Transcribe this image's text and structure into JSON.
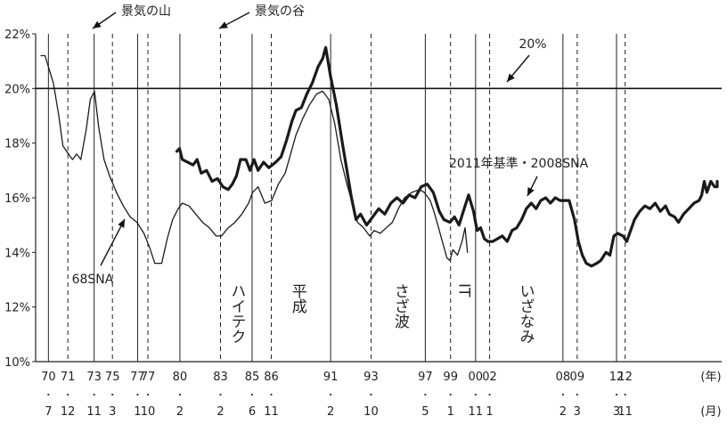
{
  "chart_data": {
    "type": "line",
    "ylim": [
      10,
      22
    ],
    "y_ticks": [
      "10%",
      "12%",
      "14%",
      "16%",
      "18%",
      "20%",
      "22%"
    ],
    "y_tick_values": [
      10,
      12,
      14,
      16,
      18,
      20,
      22
    ],
    "x_unit_year": "(年)",
    "x_unit_month": "(月)",
    "reference_line": {
      "value": 20,
      "label": "20%"
    },
    "legend_peak": "景気の山",
    "legend_trough": "景気の谷",
    "turning_points": [
      {
        "year": "70",
        "month": "7",
        "kind": "peak"
      },
      {
        "year": "71",
        "month": "12",
        "kind": "trough"
      },
      {
        "year": "73",
        "month": "11",
        "kind": "peak"
      },
      {
        "year": "75",
        "month": "3",
        "kind": "trough"
      },
      {
        "year": "77",
        "month": "1",
        "kind": "peak"
      },
      {
        "year": "77",
        "month": "10",
        "kind": "trough"
      },
      {
        "year": "80",
        "month": "2",
        "kind": "peak"
      },
      {
        "year": "83",
        "month": "2",
        "kind": "trough"
      },
      {
        "year": "85",
        "month": "6",
        "kind": "peak"
      },
      {
        "year": "86",
        "month": "11",
        "kind": "trough"
      },
      {
        "year": "91",
        "month": "2",
        "kind": "peak"
      },
      {
        "year": "93",
        "month": "10",
        "kind": "trough"
      },
      {
        "year": "97",
        "month": "5",
        "kind": "peak"
      },
      {
        "year": "99",
        "month": "1",
        "kind": "trough"
      },
      {
        "year": "00",
        "month": "11",
        "kind": "peak"
      },
      {
        "year": "02",
        "month": "1",
        "kind": "trough"
      },
      {
        "year": "08",
        "month": "2",
        "kind": "peak"
      },
      {
        "year": "09",
        "month": "3",
        "kind": "trough"
      },
      {
        "year": "12",
        "month": "3",
        "kind": "peak"
      },
      {
        "year": "12",
        "month": "11",
        "kind": "trough"
      }
    ],
    "eras": [
      {
        "label": "ハイテク",
        "x": 1984.3
      },
      {
        "label": "平成",
        "x": 1988.8
      },
      {
        "label": "さざ波",
        "x": 1995.7
      },
      {
        "label": "IT",
        "x": 1999.9
      },
      {
        "label": "いざなみ",
        "x": 2005.0
      }
    ],
    "series": [
      {
        "name": "68SNA",
        "style": "thin",
        "points": [
          [
            1970.0,
            21.2
          ],
          [
            1970.3,
            21.2
          ],
          [
            1970.6,
            20.7
          ],
          [
            1970.9,
            20.2
          ],
          [
            1971.3,
            19.0
          ],
          [
            1971.6,
            17.9
          ],
          [
            1972.0,
            17.6
          ],
          [
            1972.3,
            17.4
          ],
          [
            1972.6,
            17.6
          ],
          [
            1972.9,
            17.4
          ],
          [
            1973.3,
            18.5
          ],
          [
            1973.6,
            19.6
          ],
          [
            1973.9,
            19.9
          ],
          [
            1974.2,
            18.6
          ],
          [
            1974.6,
            17.4
          ],
          [
            1975.0,
            16.8
          ],
          [
            1975.5,
            16.2
          ],
          [
            1976.0,
            15.7
          ],
          [
            1976.5,
            15.3
          ],
          [
            1977.0,
            15.1
          ],
          [
            1977.5,
            14.7
          ],
          [
            1977.9,
            14.2
          ],
          [
            1978.3,
            13.6
          ],
          [
            1978.8,
            13.6
          ],
          [
            1979.2,
            14.5
          ],
          [
            1979.6,
            15.2
          ],
          [
            1980.0,
            15.6
          ],
          [
            1980.3,
            15.8
          ],
          [
            1980.8,
            15.7
          ],
          [
            1981.3,
            15.4
          ],
          [
            1981.8,
            15.1
          ],
          [
            1982.3,
            14.9
          ],
          [
            1982.8,
            14.6
          ],
          [
            1983.2,
            14.6
          ],
          [
            1983.7,
            14.9
          ],
          [
            1984.2,
            15.1
          ],
          [
            1984.7,
            15.4
          ],
          [
            1985.2,
            15.8
          ],
          [
            1985.5,
            16.2
          ],
          [
            1985.9,
            16.4
          ],
          [
            1986.4,
            15.8
          ],
          [
            1986.9,
            15.9
          ],
          [
            1987.4,
            16.5
          ],
          [
            1987.9,
            16.9
          ],
          [
            1988.3,
            17.6
          ],
          [
            1988.7,
            18.3
          ],
          [
            1989.2,
            18.9
          ],
          [
            1989.7,
            19.4
          ],
          [
            1990.2,
            19.8
          ],
          [
            1990.6,
            19.9
          ],
          [
            1991.0,
            19.6
          ],
          [
            1991.4,
            18.7
          ],
          [
            1991.8,
            17.4
          ],
          [
            1992.2,
            16.5
          ],
          [
            1992.6,
            15.7
          ],
          [
            1992.9,
            15.1
          ],
          [
            1993.3,
            14.9
          ],
          [
            1993.7,
            14.6
          ],
          [
            1994.0,
            14.8
          ],
          [
            1994.4,
            14.7
          ],
          [
            1994.8,
            14.9
          ],
          [
            1995.2,
            15.1
          ],
          [
            1995.6,
            15.6
          ],
          [
            1996.0,
            16.0
          ],
          [
            1996.5,
            16.2
          ],
          [
            1997.0,
            16.3
          ],
          [
            1997.3,
            16.2
          ],
          [
            1997.7,
            15.9
          ],
          [
            1998.0,
            15.4
          ],
          [
            1998.4,
            14.6
          ],
          [
            1998.8,
            13.8
          ],
          [
            1999.0,
            13.7
          ],
          [
            1999.2,
            14.1
          ],
          [
            1999.5,
            13.9
          ],
          [
            1999.8,
            14.4
          ],
          [
            2000.0,
            14.9
          ],
          [
            2000.2,
            14.0
          ]
        ]
      },
      {
        "name": "2011年基準・2008SNA",
        "style": "thick",
        "points": [
          [
            1979.9,
            17.7
          ],
          [
            1980.1,
            17.8
          ],
          [
            1980.3,
            17.4
          ],
          [
            1980.7,
            17.3
          ],
          [
            1981.1,
            17.2
          ],
          [
            1981.4,
            17.4
          ],
          [
            1981.7,
            16.9
          ],
          [
            1982.1,
            17.0
          ],
          [
            1982.5,
            16.6
          ],
          [
            1982.9,
            16.7
          ],
          [
            1983.3,
            16.4
          ],
          [
            1983.7,
            16.3
          ],
          [
            1984.0,
            16.5
          ],
          [
            1984.3,
            16.8
          ],
          [
            1984.6,
            17.4
          ],
          [
            1985.0,
            17.4
          ],
          [
            1985.3,
            17.0
          ],
          [
            1985.6,
            17.4
          ],
          [
            1985.9,
            17.0
          ],
          [
            1986.3,
            17.3
          ],
          [
            1986.7,
            17.1
          ],
          [
            1987.2,
            17.3
          ],
          [
            1987.6,
            17.5
          ],
          [
            1988.0,
            18.1
          ],
          [
            1988.4,
            18.8
          ],
          [
            1988.7,
            19.2
          ],
          [
            1989.1,
            19.3
          ],
          [
            1989.5,
            19.8
          ],
          [
            1989.9,
            20.2
          ],
          [
            1990.3,
            20.8
          ],
          [
            1990.6,
            21.1
          ],
          [
            1990.8,
            21.5
          ],
          [
            1991.1,
            20.5
          ],
          [
            1991.5,
            19.4
          ],
          [
            1991.9,
            18.0
          ],
          [
            1992.2,
            17.0
          ],
          [
            1992.5,
            16.0
          ],
          [
            1992.8,
            15.2
          ],
          [
            1993.1,
            15.4
          ],
          [
            1993.5,
            15.0
          ],
          [
            1993.9,
            15.3
          ],
          [
            1994.3,
            15.6
          ],
          [
            1994.7,
            15.4
          ],
          [
            1995.1,
            15.8
          ],
          [
            1995.5,
            16.0
          ],
          [
            1995.9,
            15.8
          ],
          [
            1996.3,
            16.1
          ],
          [
            1996.7,
            16.0
          ],
          [
            1997.1,
            16.4
          ],
          [
            1997.5,
            16.5
          ],
          [
            1997.9,
            16.2
          ],
          [
            1998.3,
            15.5
          ],
          [
            1998.6,
            15.2
          ],
          [
            1999.0,
            15.1
          ],
          [
            1999.3,
            15.3
          ],
          [
            1999.6,
            15.0
          ],
          [
            2000.0,
            15.7
          ],
          [
            2000.3,
            16.1
          ],
          [
            2000.7,
            15.5
          ],
          [
            2001.0,
            14.8
          ],
          [
            2001.3,
            14.9
          ],
          [
            2001.6,
            14.5
          ],
          [
            2001.9,
            14.4
          ],
          [
            2002.3,
            14.4
          ],
          [
            2002.7,
            14.5
          ],
          [
            2003.1,
            14.6
          ],
          [
            2003.5,
            14.4
          ],
          [
            2003.9,
            14.8
          ],
          [
            2004.3,
            14.9
          ],
          [
            2004.7,
            15.2
          ],
          [
            2005.1,
            15.6
          ],
          [
            2005.5,
            15.8
          ],
          [
            2005.9,
            15.6
          ],
          [
            2006.3,
            15.9
          ],
          [
            2006.7,
            16.0
          ],
          [
            2007.1,
            15.8
          ],
          [
            2007.5,
            16.0
          ],
          [
            2007.9,
            15.9
          ],
          [
            2008.2,
            15.9
          ],
          [
            2008.6,
            15.9
          ],
          [
            2009.0,
            15.2
          ],
          [
            2009.3,
            14.4
          ],
          [
            2009.6,
            13.9
          ],
          [
            2009.9,
            13.6
          ],
          [
            2010.3,
            13.5
          ],
          [
            2010.7,
            13.6
          ],
          [
            2011.0,
            13.7
          ],
          [
            2011.4,
            14.0
          ],
          [
            2011.7,
            13.9
          ],
          [
            2012.0,
            14.6
          ],
          [
            2012.3,
            14.7
          ],
          [
            2012.7,
            14.6
          ],
          [
            2013.0,
            14.4
          ],
          [
            2013.3,
            14.8
          ],
          [
            2013.6,
            15.2
          ],
          [
            2014.0,
            15.5
          ],
          [
            2014.4,
            15.7
          ],
          [
            2014.8,
            15.6
          ],
          [
            2015.2,
            15.8
          ],
          [
            2015.6,
            15.5
          ],
          [
            2016.0,
            15.7
          ],
          [
            2016.3,
            15.4
          ],
          [
            2016.7,
            15.3
          ],
          [
            2017.0,
            15.1
          ],
          [
            2017.4,
            15.4
          ],
          [
            2017.8,
            15.6
          ],
          [
            2018.2,
            15.8
          ],
          [
            2018.6,
            15.9
          ],
          [
            2018.8,
            16.1
          ],
          [
            2019.0,
            16.6
          ],
          [
            2019.2,
            16.2
          ],
          [
            2019.5,
            16.6
          ],
          [
            2019.8,
            16.4
          ],
          [
            2020.1,
            16.4
          ],
          [
            2020.3,
            16.6
          ]
        ]
      }
    ],
    "annotations": [
      {
        "text": "68SNA",
        "series": 0
      },
      {
        "text": "2011年基準・2008SNA",
        "series": 1
      }
    ]
  }
}
